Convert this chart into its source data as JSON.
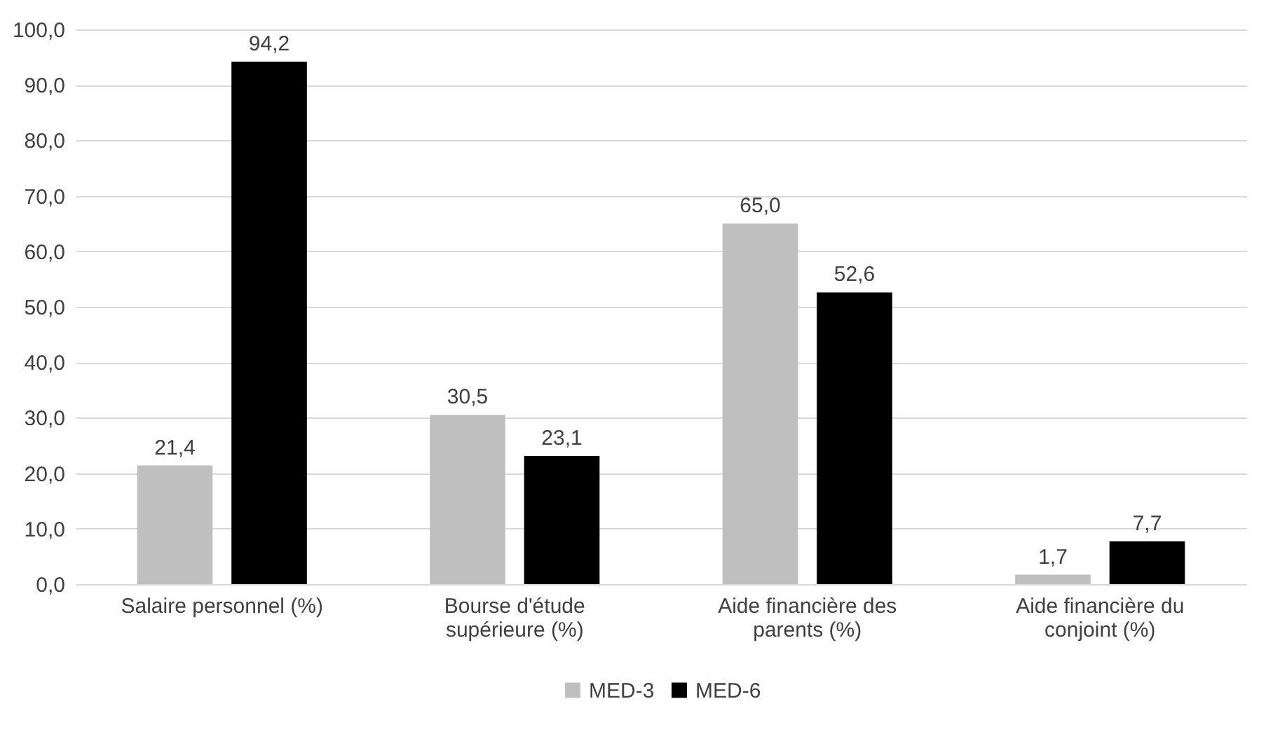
{
  "chart_data": {
    "type": "bar",
    "categories": [
      "Salaire personnel (%)",
      "Bourse d'étude supérieure (%)",
      "Aide financière des parents (%)",
      "Aide financière du conjoint (%)"
    ],
    "series": [
      {
        "name": "MED-3",
        "color": "#bfbfbf",
        "values": [
          21.4,
          30.5,
          65.0,
          1.7
        ],
        "value_labels": [
          "21,4",
          "30,5",
          "65,0",
          "1,7"
        ]
      },
      {
        "name": "MED-6",
        "color": "#000000",
        "values": [
          94.2,
          23.1,
          52.6,
          7.7
        ],
        "value_labels": [
          "94,2",
          "23,1",
          "52,6",
          "7,7"
        ]
      }
    ],
    "ylim": [
      0,
      100
    ],
    "yticks": [
      {
        "value": 0,
        "label": "0,0"
      },
      {
        "value": 10,
        "label": "10,0"
      },
      {
        "value": 20,
        "label": "20,0"
      },
      {
        "value": 30,
        "label": "30,0"
      },
      {
        "value": 40,
        "label": "40,0"
      },
      {
        "value": 50,
        "label": "50,0"
      },
      {
        "value": 60,
        "label": "60,0"
      },
      {
        "value": 70,
        "label": "70,0"
      },
      {
        "value": 80,
        "label": "80,0"
      },
      {
        "value": 90,
        "label": "90,0"
      },
      {
        "value": 100,
        "label": "100,0"
      }
    ],
    "grid": true,
    "legend": "bottom"
  }
}
